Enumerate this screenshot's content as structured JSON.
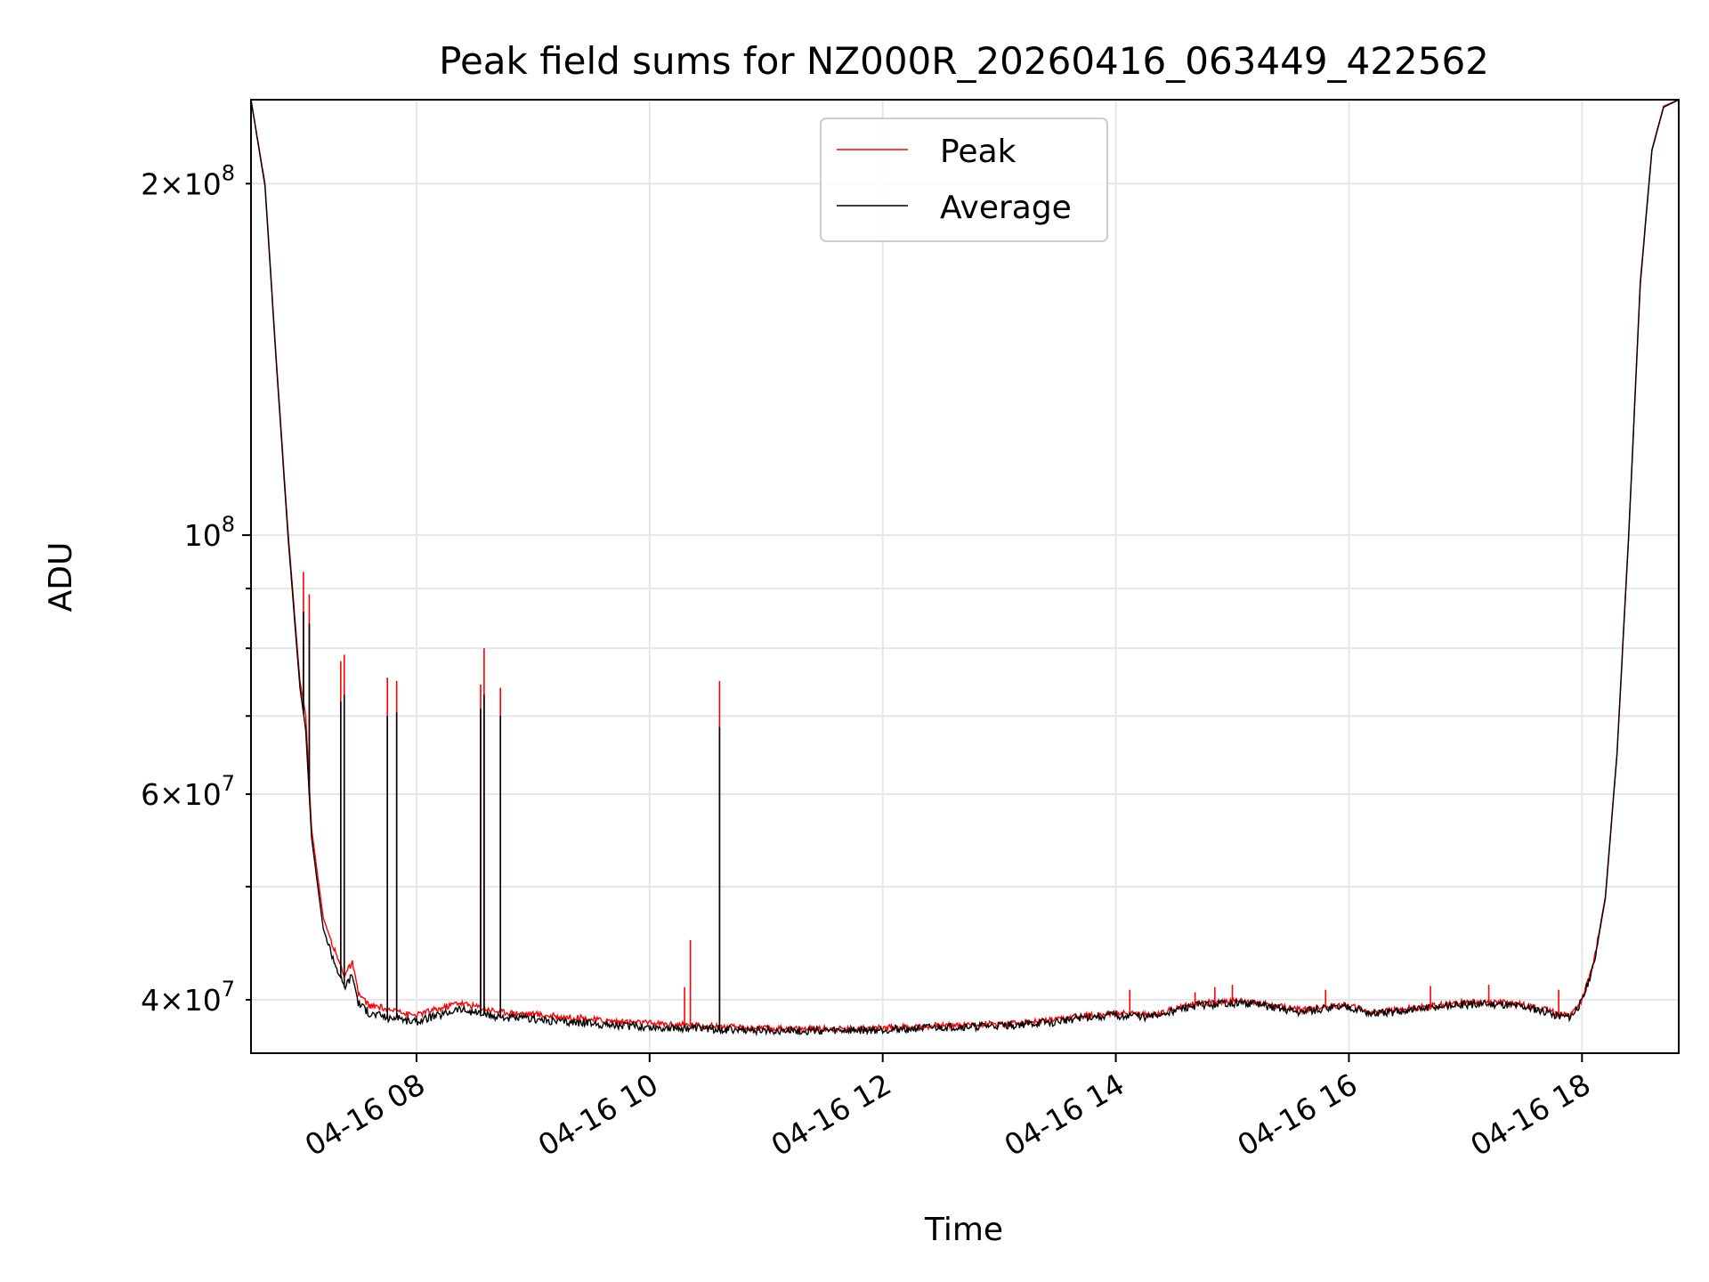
{
  "chart_data": {
    "type": "line",
    "title": "Peak field sums for NZ000R_20260416_063449_422562",
    "xlabel": "Time",
    "ylabel": "ADU",
    "yscale": "log",
    "xlim": [
      6.58,
      18.83
    ],
    "ylim": [
      36000000,
      236000000
    ],
    "grid": true,
    "legend_position": "upper center",
    "x_ticks": [
      {
        "value": 8,
        "label": "04-16 08"
      },
      {
        "value": 10,
        "label": "04-16 10"
      },
      {
        "value": 12,
        "label": "04-16 12"
      },
      {
        "value": 14,
        "label": "04-16 14"
      },
      {
        "value": 16,
        "label": "04-16 16"
      },
      {
        "value": 18,
        "label": "04-16 18"
      }
    ],
    "y_major_ticks": [
      {
        "value": 100000000,
        "base": "10",
        "exp": "8",
        "coef": ""
      }
    ],
    "y_minor_ticks": [
      {
        "value": 40000000,
        "coef": "4",
        "base": "10",
        "exp": "7"
      },
      {
        "value": 60000000,
        "coef": "6",
        "base": "10",
        "exp": "7"
      },
      {
        "value": 200000000,
        "coef": "2",
        "base": "10",
        "exp": "8"
      }
    ],
    "y_minor_unlabeled": [
      50000000,
      70000000,
      80000000,
      90000000
    ],
    "series": [
      {
        "name": "Peak",
        "color": "#ff0000",
        "x": [
          6.58,
          6.7,
          6.8,
          6.9,
          7.0,
          7.05,
          7.1,
          7.2,
          7.3,
          7.38,
          7.45,
          7.5,
          7.6,
          7.7,
          7.75,
          7.78,
          7.8,
          7.85,
          7.9,
          8.0,
          8.1,
          8.2,
          8.3,
          8.35,
          8.4,
          8.5,
          8.55,
          8.6,
          8.65,
          8.7,
          8.8,
          9.0,
          9.2,
          9.4,
          9.6,
          9.8,
          10.0,
          10.2,
          10.4,
          10.5,
          10.6,
          10.65,
          10.7,
          10.8,
          11.0,
          11.2,
          11.5,
          11.8,
          12.0,
          12.3,
          12.6,
          13.0,
          13.3,
          13.5,
          13.7,
          13.9,
          14.1,
          14.3,
          14.5,
          14.7,
          15.0,
          15.2,
          15.4,
          15.6,
          15.8,
          16.0,
          16.2,
          16.4,
          16.7,
          17.0,
          17.3,
          17.5,
          17.7,
          17.8,
          17.9,
          18.0,
          18.1,
          18.2,
          18.3,
          18.4,
          18.5,
          18.6,
          18.7,
          18.83
        ],
        "y": [
          236000000,
          200000000,
          140000000,
          100000000,
          75000000,
          70000000,
          56000000,
          47000000,
          44000000,
          42000000,
          43000000,
          40500000,
          39500000,
          39400000,
          39200000,
          39000000,
          39200000,
          39300000,
          38900000,
          38800000,
          39100000,
          39300000,
          39600000,
          39800000,
          39700000,
          39500000,
          39400000,
          39300000,
          39200000,
          39100000,
          39000000,
          38900000,
          38700000,
          38600000,
          38400000,
          38300000,
          38200000,
          38100000,
          38050000,
          38000000,
          37950000,
          37920000,
          37900000,
          37850000,
          37800000,
          37790000,
          37780000,
          37800000,
          37850000,
          37950000,
          38050000,
          38150000,
          38300000,
          38450000,
          38750000,
          38900000,
          38950000,
          38800000,
          39300000,
          39700000,
          39900000,
          39800000,
          39500000,
          39200000,
          39500000,
          39600000,
          39000000,
          39200000,
          39500000,
          39800000,
          39800000,
          39600000,
          39200000,
          38900000,
          38800000,
          40000000,
          43000000,
          49000000,
          65000000,
          100000000,
          165000000,
          214000000,
          233000000,
          236000000
        ]
      },
      {
        "name": "Average",
        "color": "#000000",
        "x": [
          6.58,
          6.7,
          6.8,
          6.9,
          7.0,
          7.05,
          7.1,
          7.2,
          7.3,
          7.38,
          7.45,
          7.5,
          7.6,
          7.7,
          7.75,
          7.78,
          7.8,
          7.85,
          7.9,
          8.0,
          8.1,
          8.2,
          8.3,
          8.35,
          8.4,
          8.5,
          8.55,
          8.6,
          8.65,
          8.7,
          8.8,
          9.0,
          9.2,
          9.4,
          9.6,
          9.8,
          10.0,
          10.2,
          10.4,
          10.5,
          10.6,
          10.65,
          10.7,
          10.8,
          11.0,
          11.2,
          11.5,
          11.8,
          12.0,
          12.3,
          12.6,
          13.0,
          13.3,
          13.5,
          13.7,
          13.9,
          14.1,
          14.3,
          14.5,
          14.7,
          15.0,
          15.2,
          15.4,
          15.6,
          15.8,
          16.0,
          16.2,
          16.4,
          16.7,
          17.0,
          17.3,
          17.5,
          17.7,
          17.8,
          17.9,
          18.0,
          18.1,
          18.2,
          18.3,
          18.4,
          18.5,
          18.6,
          18.7,
          18.83
        ],
        "y": [
          236000000,
          199000000,
          139000000,
          99000000,
          74000000,
          68000000,
          55000000,
          46000000,
          43000000,
          41000000,
          42000000,
          39800000,
          38900000,
          38800000,
          38600000,
          38500000,
          38600000,
          38700000,
          38400000,
          38300000,
          38600000,
          38800000,
          39100000,
          39300000,
          39200000,
          39000000,
          38900000,
          38800000,
          38700000,
          38700000,
          38600000,
          38500000,
          38350000,
          38250000,
          38100000,
          38000000,
          37900000,
          37850000,
          37800000,
          37780000,
          37750000,
          37730000,
          37700000,
          37680000,
          37650000,
          37640000,
          37630000,
          37650000,
          37700000,
          37800000,
          37900000,
          38000000,
          38150000,
          38300000,
          38600000,
          38750000,
          38800000,
          38650000,
          39150000,
          39550000,
          39750000,
          39650000,
          39350000,
          39050000,
          39350000,
          39450000,
          38850000,
          39050000,
          39350000,
          39650000,
          39650000,
          39450000,
          39050000,
          38750000,
          38650000,
          39850000,
          42800000,
          48800000,
          64800000,
          99500000,
          164000000,
          213500000,
          232500000,
          236000000
        ]
      }
    ],
    "spikes": {
      "peak": [
        [
          7.03,
          93000000
        ],
        [
          7.08,
          89000000
        ],
        [
          7.35,
          78000000
        ],
        [
          7.38,
          79000000
        ],
        [
          7.75,
          75500000
        ],
        [
          7.83,
          75000000
        ],
        [
          8.55,
          74500000
        ],
        [
          8.58,
          80000000
        ],
        [
          8.72,
          74000000
        ],
        [
          10.3,
          41000000
        ],
        [
          10.35,
          45000000
        ],
        [
          10.6,
          75000000
        ],
        [
          14.12,
          40800000
        ],
        [
          14.68,
          40600000
        ],
        [
          14.85,
          41000000
        ],
        [
          15.0,
          41200000
        ],
        [
          15.8,
          40800000
        ],
        [
          16.7,
          41100000
        ],
        [
          17.2,
          41200000
        ],
        [
          17.8,
          40800000
        ]
      ],
      "average": [
        [
          7.03,
          86000000
        ],
        [
          7.08,
          84000000
        ],
        [
          7.35,
          72000000
        ],
        [
          7.38,
          73000000
        ],
        [
          7.75,
          70000000
        ],
        [
          7.83,
          70500000
        ],
        [
          8.55,
          71000000
        ],
        [
          8.58,
          73000000
        ],
        [
          8.72,
          70000000
        ],
        [
          10.6,
          68500000
        ]
      ]
    }
  }
}
